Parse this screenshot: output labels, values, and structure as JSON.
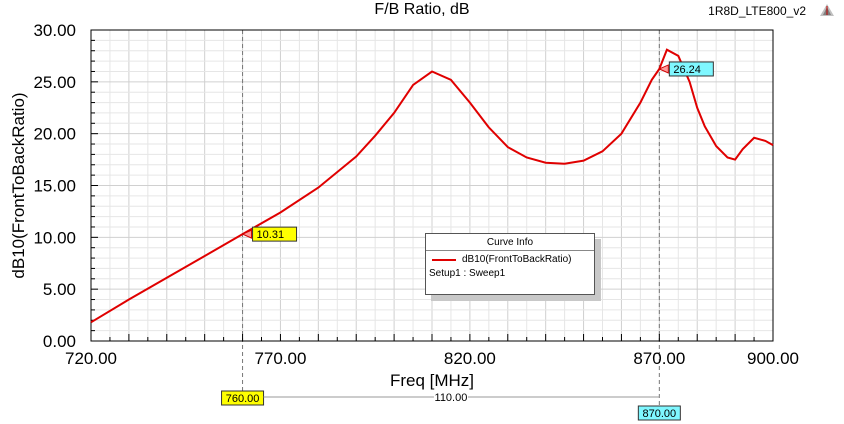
{
  "title": "F/B Ratio, dB",
  "design_name": "1R8D_LTE800_v2",
  "colors": {
    "curve": "#e00000",
    "marker_yellow": "#ffff00",
    "marker_cyan": "#7ff7ff"
  },
  "legend": {
    "title": "Curve Info",
    "series": "dB10(FrontToBackRatio)",
    "setup": "Setup1 : Sweep1"
  },
  "chart_data": {
    "type": "line",
    "title": "F/B Ratio, dB",
    "xlabel": "Freq [MHz]",
    "ylabel": "dB10(FrontToBackRatio)",
    "xlim": [
      720,
      900
    ],
    "ylim": [
      0,
      30
    ],
    "x_ticks": [
      "720.00",
      "770.00",
      "820.00",
      "870.00",
      "900.00"
    ],
    "y_ticks": [
      "0.00",
      "5.00",
      "10.00",
      "15.00",
      "20.00",
      "25.00",
      "30.00"
    ],
    "grid": true,
    "series": [
      {
        "name": "dB10(FrontToBackRatio)",
        "x": [
          720,
          730,
          740,
          750,
          760,
          770,
          780,
          790,
          795,
          800,
          805,
          810,
          815,
          820,
          825,
          830,
          835,
          840,
          845,
          850,
          855,
          860,
          865,
          868,
          870,
          872,
          875,
          878,
          880,
          882,
          885,
          888,
          890,
          892,
          895,
          898,
          900
        ],
        "y": [
          1.8,
          4.0,
          6.1,
          8.2,
          10.31,
          12.4,
          14.8,
          17.8,
          19.8,
          22.0,
          24.7,
          26.0,
          25.2,
          23.0,
          20.6,
          18.7,
          17.7,
          17.2,
          17.1,
          17.4,
          18.3,
          20.0,
          23.0,
          25.2,
          26.24,
          28.1,
          27.5,
          25.0,
          22.5,
          20.7,
          18.8,
          17.7,
          17.5,
          18.5,
          19.6,
          19.3,
          18.9
        ]
      }
    ],
    "markers": [
      {
        "x": 760,
        "y_label": "10.31",
        "x_label": "760.00",
        "style": "yellow"
      },
      {
        "x": 870,
        "y_label": "26.24",
        "x_label": "870.00",
        "style": "cyan"
      }
    ],
    "delta_label": "110.00"
  }
}
